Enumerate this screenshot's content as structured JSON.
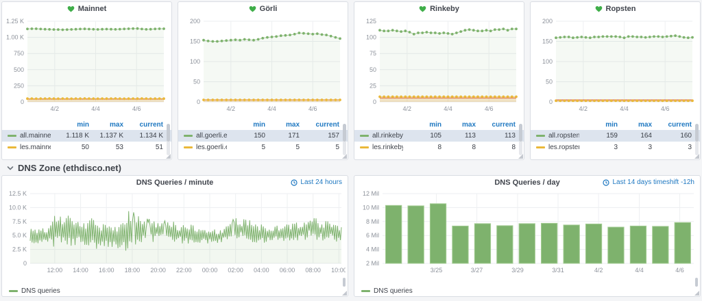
{
  "colors": {
    "green": "#7eb26d",
    "yellow": "#eab839",
    "red": "#e24d42",
    "blue": "#1f78c1",
    "heart_green": "#3fae49"
  },
  "row_header": {
    "label": "DNS Zone (ethdisco.net)",
    "collapse_icon": "chevron-down-icon"
  },
  "panels": [
    {
      "title": "Mainnet",
      "health_icon": "heart-icon",
      "legend": {
        "columns": [
          "min",
          "max",
          "current"
        ],
        "rows": [
          {
            "name": "all.mainnet.ethdisco.net",
            "min": "1.118 K",
            "max": "1.137 K",
            "current": "1.134 K",
            "color": "#7eb26d",
            "selected": true
          },
          {
            "name": "les.mainnet.ethdisco.net",
            "min": "50",
            "max": "53",
            "current": "51",
            "color": "#eab839",
            "selected": false
          }
        ]
      }
    },
    {
      "title": "Görli",
      "health_icon": "heart-icon",
      "legend": {
        "columns": [
          "min",
          "max",
          "current"
        ],
        "rows": [
          {
            "name": "all.goerli.ethdisco.net",
            "min": "150",
            "max": "171",
            "current": "157",
            "color": "#7eb26d",
            "selected": true
          },
          {
            "name": "les.goerli.ethdisco.net",
            "min": "5",
            "max": "5",
            "current": "5",
            "color": "#eab839",
            "selected": false
          }
        ]
      }
    },
    {
      "title": "Rinkeby",
      "health_icon": "heart-icon",
      "legend": {
        "columns": [
          "min",
          "max",
          "current"
        ],
        "rows": [
          {
            "name": "all.rinkeby.ethdisco.net",
            "min": "105",
            "max": "113",
            "current": "113",
            "color": "#7eb26d",
            "selected": true
          },
          {
            "name": "les.rinkeby.ethdisco.net",
            "min": "8",
            "max": "8",
            "current": "8",
            "color": "#eab839",
            "selected": false
          }
        ]
      }
    },
    {
      "title": "Ropsten",
      "health_icon": "heart-icon",
      "legend": {
        "columns": [
          "min",
          "max",
          "current"
        ],
        "rows": [
          {
            "name": "all.ropsten.ethdisco.net",
            "min": "159",
            "max": "164",
            "current": "160",
            "color": "#7eb26d",
            "selected": true
          },
          {
            "name": "les.ropsten.ethdisco.net",
            "min": "3",
            "max": "3",
            "current": "3",
            "color": "#eab839",
            "selected": false
          }
        ]
      }
    }
  ],
  "bottom_panels": [
    {
      "title": "DNS Queries / minute",
      "time_range": "Last 24 hours",
      "time_icon": "clock-icon",
      "legend": "DNS queries"
    },
    {
      "title": "DNS Queries / day",
      "time_range": "Last 14 days timeshift -12h",
      "time_icon": "clock-icon",
      "legend": "DNS queries"
    }
  ],
  "chart_data": [
    {
      "type": "line",
      "title": "Mainnet",
      "grid": true,
      "y_max": 1250,
      "y_ticks": [
        0,
        250,
        500,
        750,
        1000,
        1250
      ],
      "y_tick_labels": [
        "0",
        "250",
        "500",
        "750",
        "1.00 K",
        "1.25 K"
      ],
      "x_ticks": [
        {
          "pos": 0.2,
          "label": "4/2"
        },
        {
          "pos": 0.5,
          "label": "4/4"
        },
        {
          "pos": 0.8,
          "label": "4/6"
        }
      ],
      "threshold": {
        "value": 45,
        "color": "#e24d42",
        "fill": "rgba(226,77,66,0.07)"
      },
      "series": [
        {
          "name": "all.mainnet.ethdisco.net",
          "color": "#7eb26d",
          "fill": "rgba(126,178,109,0.08)",
          "values": [
            1130,
            1133,
            1134,
            1129,
            1126,
            1124,
            1122,
            1121,
            1118,
            1120,
            1123,
            1126,
            1129,
            1131,
            1128,
            1125,
            1123,
            1126,
            1128,
            1126,
            1124,
            1127,
            1130,
            1133,
            1136,
            1137,
            1129,
            1124,
            1126,
            1130,
            1133,
            1134
          ]
        },
        {
          "name": "les.mainnet.ethdisco.net",
          "color": "#eab839",
          "fill": "rgba(234,184,57,0.22)",
          "values": [
            51,
            52,
            50,
            51,
            52,
            53,
            51,
            50,
            52,
            51,
            50,
            52,
            51,
            53,
            52,
            51,
            50,
            52,
            51,
            52,
            53,
            51,
            50,
            51,
            52,
            51,
            53,
            52,
            50,
            51,
            52,
            51
          ]
        }
      ]
    },
    {
      "type": "line",
      "title": "Görli",
      "grid": true,
      "y_max": 200,
      "y_ticks": [
        0,
        50,
        100,
        150,
        200
      ],
      "y_tick_labels": [
        "0",
        "50",
        "100",
        "150",
        "200"
      ],
      "x_ticks": [
        {
          "pos": 0.2,
          "label": "4/2"
        },
        {
          "pos": 0.5,
          "label": "4/4"
        },
        {
          "pos": 0.8,
          "label": "4/6"
        }
      ],
      "threshold": {
        "value": 5,
        "color": "#e24d42",
        "fill": "rgba(226,77,66,0.07)"
      },
      "series": [
        {
          "name": "all.goerli.ethdisco.net",
          "color": "#7eb26d",
          "fill": "rgba(126,178,109,0.08)",
          "values": [
            153,
            151,
            150,
            150,
            151,
            152,
            153,
            154,
            153,
            155,
            154,
            153,
            155,
            158,
            160,
            161,
            162,
            164,
            165,
            166,
            168,
            171,
            170,
            169,
            168,
            169,
            167,
            166,
            163,
            160,
            157
          ]
        },
        {
          "name": "les.goerli.ethdisco.net",
          "color": "#eab839",
          "fill": "rgba(234,184,57,0.22)",
          "values": [
            5,
            5,
            5,
            5,
            5,
            5,
            5,
            5,
            5,
            5,
            5,
            5,
            5,
            5,
            5,
            5,
            5,
            5,
            5,
            5,
            5,
            5,
            5,
            5,
            5,
            5,
            5,
            5,
            5,
            5,
            5
          ]
        }
      ]
    },
    {
      "type": "line",
      "title": "Rinkeby",
      "grid": true,
      "y_max": 125,
      "y_ticks": [
        0,
        25,
        50,
        75,
        100,
        125
      ],
      "y_tick_labels": [
        "0",
        "25",
        "50",
        "75",
        "100",
        "125"
      ],
      "x_ticks": [
        {
          "pos": 0.2,
          "label": "4/2"
        },
        {
          "pos": 0.5,
          "label": "4/4"
        },
        {
          "pos": 0.8,
          "label": "4/6"
        }
      ],
      "threshold": {
        "value": 6,
        "color": "#e24d42",
        "fill": "rgba(226,77,66,0.07)"
      },
      "series": [
        {
          "name": "all.rinkeby.ethdisco.net",
          "color": "#7eb26d",
          "fill": "rgba(126,178,109,0.08)",
          "values": [
            111,
            110,
            110,
            111,
            110,
            109,
            110,
            108,
            105,
            107,
            107,
            108,
            107,
            107,
            106,
            107,
            106,
            105,
            107,
            109,
            111,
            112,
            111,
            110,
            110,
            111,
            110,
            112,
            112,
            113,
            111,
            113,
            113
          ]
        },
        {
          "name": "les.rinkeby.ethdisco.net",
          "color": "#eab839",
          "fill": "rgba(234,184,57,0.22)",
          "values": [
            8,
            8,
            8,
            8,
            8,
            8,
            8,
            8,
            8,
            8,
            8,
            8,
            8,
            8,
            8,
            8,
            8,
            8,
            8,
            8,
            8,
            8,
            8,
            8,
            8,
            8,
            8,
            8,
            8,
            8,
            8,
            8,
            8
          ]
        }
      ]
    },
    {
      "type": "line",
      "title": "Ropsten",
      "grid": true,
      "y_max": 200,
      "y_ticks": [
        0,
        50,
        100,
        150,
        200
      ],
      "y_tick_labels": [
        "0",
        "50",
        "100",
        "150",
        "200"
      ],
      "x_ticks": [
        {
          "pos": 0.2,
          "label": "4/2"
        },
        {
          "pos": 0.5,
          "label": "4/4"
        },
        {
          "pos": 0.8,
          "label": "4/6"
        }
      ],
      "threshold": {
        "value": 5,
        "color": "#e24d42",
        "fill": "rgba(226,77,66,0.07)"
      },
      "series": [
        {
          "name": "all.ropsten.ethdisco.net",
          "color": "#7eb26d",
          "fill": "rgba(126,178,109,0.08)",
          "values": [
            159,
            160,
            161,
            161,
            159,
            160,
            161,
            160,
            159,
            161,
            161,
            162,
            162,
            162,
            162,
            161,
            159,
            162,
            162,
            161,
            161,
            160,
            161,
            162,
            162,
            161,
            162,
            163,
            164,
            162,
            160,
            159,
            160
          ]
        },
        {
          "name": "les.ropsten.ethdisco.net",
          "color": "#eab839",
          "fill": "rgba(234,184,57,0.22)",
          "values": [
            3,
            3,
            3,
            3,
            3,
            3,
            3,
            3,
            3,
            3,
            3,
            3,
            3,
            3,
            3,
            3,
            3,
            3,
            3,
            3,
            3,
            3,
            3,
            3,
            3,
            3,
            3,
            3,
            3,
            3,
            3,
            3,
            3
          ]
        }
      ]
    },
    {
      "type": "line",
      "title": "DNS Queries / minute",
      "time_range": "Last 24 hours",
      "grid": true,
      "series_name": "DNS queries",
      "color": "#7eb26d",
      "fill": "rgba(126,178,109,0.10)",
      "y_max": 12500,
      "y_ticks": [
        0,
        2500,
        5000,
        7500,
        10000,
        12500
      ],
      "y_tick_labels": [
        "0",
        "2.5 K",
        "5.0 K",
        "7.5 K",
        "10.0 K",
        "12.5 K"
      ],
      "x_tick_labels": [
        "12:00",
        "14:00",
        "16:00",
        "18:00",
        "20:00",
        "22:00",
        "00:00",
        "02:00",
        "04:00",
        "06:00",
        "08:00",
        "10:00"
      ],
      "x_tick_start": 0.079,
      "x_tick_step": 0.083,
      "noise": {
        "seed": 1337,
        "points": 320,
        "clamp": [
          2100,
          10050
        ],
        "envelope": [
          [
            0,
            4700,
            1700
          ],
          [
            0.05,
            4900,
            1800
          ],
          [
            0.085,
            6200,
            3700
          ],
          [
            0.12,
            6000,
            2900
          ],
          [
            0.16,
            5300,
            2200
          ],
          [
            0.205,
            5400,
            3100
          ],
          [
            0.245,
            4900,
            2100
          ],
          [
            0.285,
            4300,
            2200
          ],
          [
            0.315,
            6000,
            3800
          ],
          [
            0.36,
            5900,
            2200
          ],
          [
            0.42,
            5800,
            1900
          ],
          [
            0.47,
            5400,
            2000
          ],
          [
            0.52,
            5100,
            1800
          ],
          [
            0.57,
            4900,
            1400
          ],
          [
            0.62,
            4900,
            1200
          ],
          [
            0.66,
            6300,
            2000
          ],
          [
            0.7,
            5900,
            2200
          ],
          [
            0.75,
            5300,
            1600
          ],
          [
            0.8,
            5400,
            1500
          ],
          [
            0.85,
            5600,
            1600
          ],
          [
            0.9,
            6500,
            2300
          ],
          [
            0.93,
            5800,
            1900
          ],
          [
            0.97,
            5900,
            1600
          ],
          [
            1,
            4700,
            2200
          ]
        ]
      }
    },
    {
      "type": "bar",
      "title": "DNS Queries / day",
      "time_range": "Last 14 days timeshift -12h",
      "grid": true,
      "series_name": "DNS queries",
      "color": "#7eb26d",
      "bar_stroke": "#a3cc93",
      "unit": "Mil",
      "y_min": 2,
      "y_max": 12,
      "y_ticks": [
        2,
        4,
        6,
        8,
        10,
        12
      ],
      "y_tick_labels": [
        "2 Mil",
        "4 Mil",
        "6 Mil",
        "8 Mil",
        "10 Mil",
        "12 Mil"
      ],
      "x_ticks": [
        {
          "pos": 0.173,
          "label": "3/25"
        },
        {
          "pos": 0.303,
          "label": "3/27"
        },
        {
          "pos": 0.434,
          "label": "3/29"
        },
        {
          "pos": 0.564,
          "label": "3/31"
        },
        {
          "pos": 0.694,
          "label": "4/2"
        },
        {
          "pos": 0.825,
          "label": "4/4"
        },
        {
          "pos": 0.955,
          "label": "4/6"
        }
      ],
      "values": [
        10.3,
        10.25,
        10.55,
        7.35,
        7.7,
        7.4,
        7.7,
        7.75,
        7.5,
        7.65,
        7.2,
        7.35,
        7.3,
        7.85
      ]
    }
  ]
}
